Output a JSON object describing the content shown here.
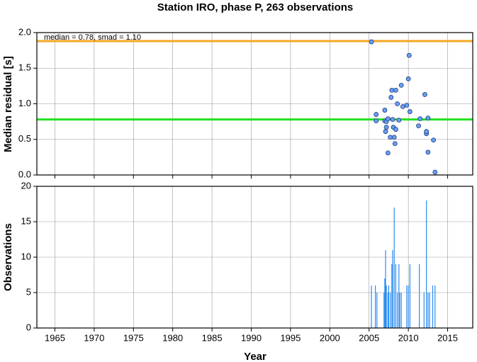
{
  "chart_data": [
    {
      "type": "scatter",
      "title": "Station IRO, phase P, 263 observations",
      "y_label": "Median residual [s]",
      "annotation": "median = 0.78, smad = 1.10",
      "x": [
        2005.3,
        2005.9,
        2005.9,
        2007.0,
        2007.0,
        2007.2,
        2007.2,
        2007.1,
        2007.4,
        2007.4,
        2007.7,
        2007.8,
        2007.9,
        2008.0,
        2008.1,
        2008.2,
        2008.3,
        2008.4,
        2008.4,
        2008.6,
        2008.8,
        2009.1,
        2009.3,
        2009.8,
        2010.0,
        2010.1,
        2010.2,
        2011.3,
        2011.5,
        2012.1,
        2012.3,
        2012.3,
        2012.5,
        2012.5,
        2013.2,
        2013.4
      ],
      "values": [
        1.87,
        0.85,
        0.76,
        0.91,
        0.76,
        0.75,
        0.67,
        0.61,
        0.79,
        0.31,
        0.53,
        1.09,
        1.19,
        0.78,
        0.67,
        0.53,
        0.44,
        1.19,
        0.64,
        1.0,
        0.77,
        1.26,
        0.96,
        0.98,
        1.35,
        1.68,
        0.89,
        0.69,
        0.79,
        1.13,
        0.58,
        0.61,
        0.8,
        0.32,
        0.49,
        0.04
      ],
      "color": "#6a9ef0",
      "hlines": [
        {
          "value": 1.88,
          "color": "#f5a623"
        },
        {
          "value": 0.78,
          "color": "#22e022"
        }
      ],
      "xlim": [
        1962.7,
        2018.2
      ],
      "xticks": [
        1965,
        1970,
        1975,
        1980,
        1985,
        1990,
        1995,
        2000,
        2005,
        2010,
        2015
      ],
      "ylim": [
        0,
        2
      ],
      "yticks": [
        {
          "value": 0,
          "label": "0.0"
        },
        0.5,
        {
          "value": 1,
          "label": "1.0"
        },
        1.5,
        {
          "value": 2,
          "label": "2.0"
        }
      ],
      "grid": true
    },
    {
      "type": "bar",
      "x_label": "Year",
      "y_label": "Observations",
      "x": [
        2005.3,
        2005.8,
        2006.0,
        2006.9,
        2007.0,
        2007.1,
        2007.2,
        2007.4,
        2007.5,
        2007.7,
        2007.9,
        2008.0,
        2008.2,
        2008.4,
        2008.6,
        2008.8,
        2008.9,
        2009.1,
        2009.8,
        2010.0,
        2010.2,
        2011.4,
        2012.0,
        2012.3,
        2012.5,
        2012.7,
        2013.1,
        2013.4
      ],
      "values": [
        6,
        6,
        5,
        5,
        7,
        11,
        6,
        5,
        6,
        5,
        9,
        11,
        17,
        9,
        5,
        9,
        5,
        5,
        6,
        6,
        9,
        9,
        5,
        18,
        5,
        5,
        6,
        6
      ],
      "color": "#2b8cf0",
      "xlim": [
        1962.7,
        2018.2
      ],
      "xticks": [
        1965,
        1970,
        1975,
        1980,
        1985,
        1990,
        1995,
        2000,
        2005,
        2010,
        2015
      ],
      "ylim": [
        0,
        20
      ],
      "yticks": [
        0,
        5,
        10,
        15,
        20
      ],
      "grid": true
    }
  ]
}
